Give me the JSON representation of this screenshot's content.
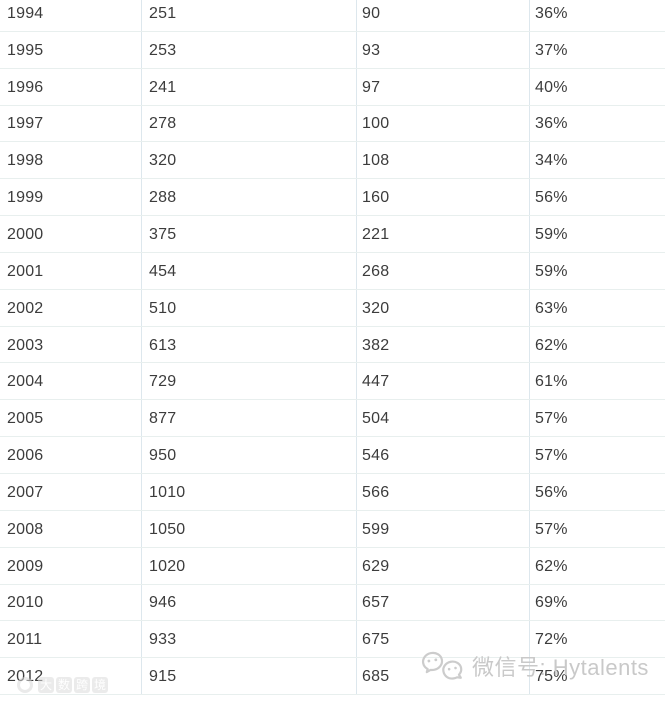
{
  "chart_data": {
    "type": "table",
    "rows": [
      [
        "1994",
        "251",
        "90",
        "36%"
      ],
      [
        "1995",
        "253",
        "93",
        "37%"
      ],
      [
        "1996",
        "241",
        "97",
        "40%"
      ],
      [
        "1997",
        "278",
        "100",
        "36%"
      ],
      [
        "1998",
        "320",
        "108",
        "34%"
      ],
      [
        "1999",
        "288",
        "160",
        "56%"
      ],
      [
        "2000",
        "375",
        "221",
        "59%"
      ],
      [
        "2001",
        "454",
        "268",
        "59%"
      ],
      [
        "2002",
        "510",
        "320",
        "63%"
      ],
      [
        "2003",
        "613",
        "382",
        "62%"
      ],
      [
        "2004",
        "729",
        "447",
        "61%"
      ],
      [
        "2005",
        "877",
        "504",
        "57%"
      ],
      [
        "2006",
        "950",
        "546",
        "57%"
      ],
      [
        "2007",
        "1010",
        "566",
        "56%"
      ],
      [
        "2008",
        "1050",
        "599",
        "57%"
      ],
      [
        "2009",
        "1020",
        "629",
        "62%"
      ],
      [
        "2010",
        "946",
        "657",
        "69%"
      ],
      [
        "2011",
        "933",
        "675",
        "72%"
      ],
      [
        "2012",
        "915",
        "685",
        "75%"
      ]
    ]
  },
  "watermarks": {
    "left": {
      "text": "大数跨境"
    },
    "wechat": {
      "text": "微信号: Hytalents"
    }
  },
  "colors": {
    "background": "#ffffff",
    "text": "#3c3c3c",
    "row_border": "#e8efee",
    "column_border": "#dde7ed",
    "watermark_gray": "#c9c9c9",
    "watermark_faint": "#dcdcdc"
  }
}
